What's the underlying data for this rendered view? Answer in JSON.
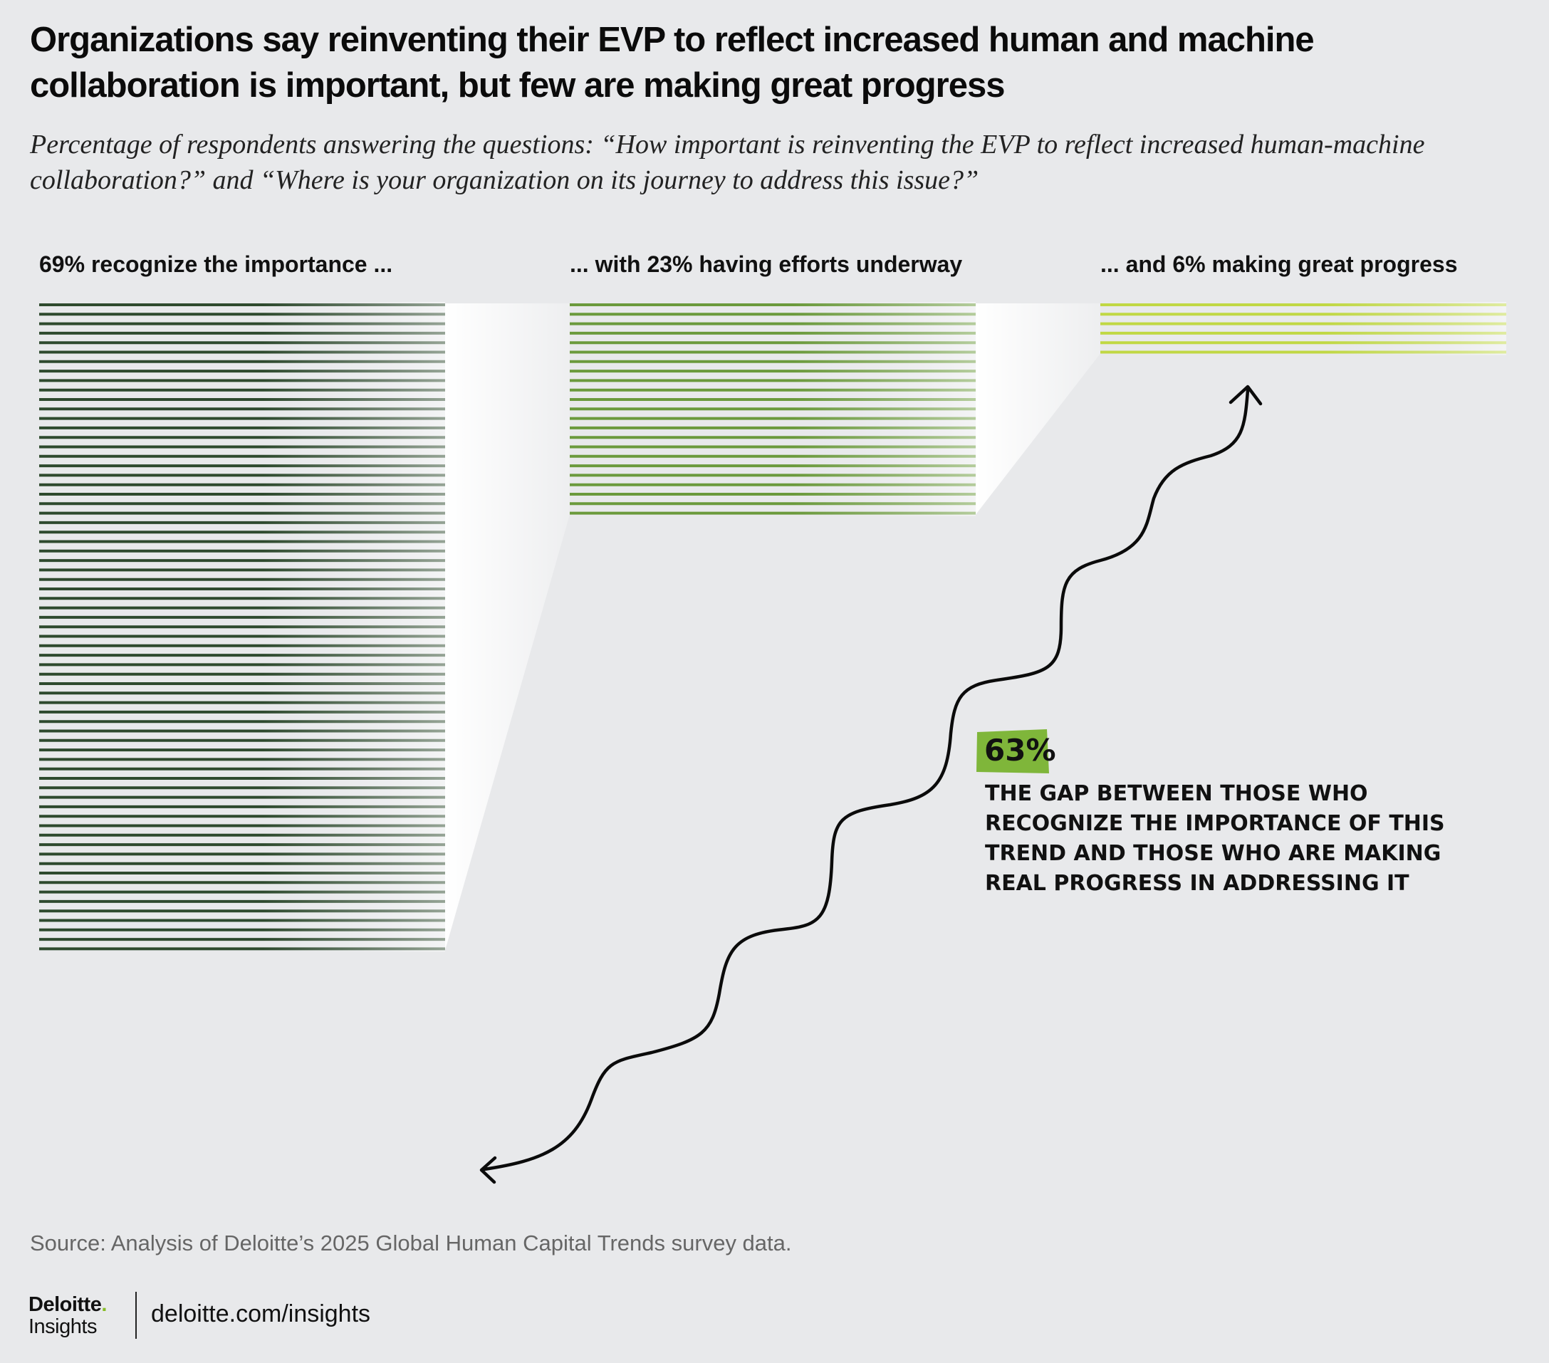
{
  "title": "Organizations say reinventing their EVP to reflect increased human and machine collaboration is important, but few are making great progress",
  "subtitle": "Percentage of respondents answering the questions: “How important is reinventing the EVP to reflect increased human-machine collaboration?” and “Where is your organization on its journey to address this issue?”",
  "chart_data": {
    "type": "bar",
    "categories": [
      "69% recognize the importance ...",
      "... with 23% having efforts underway",
      "... and 6% making great progress"
    ],
    "values": [
      69,
      23,
      6
    ],
    "unit": "%",
    "colors": [
      "#2e4a2e",
      "#6b9a3c",
      "#c0d844"
    ],
    "annotation": {
      "value": "63%",
      "lines": [
        "THE GAP BETWEEN THOSE WHO",
        "RECOGNIZE THE IMPORTANCE OF THIS",
        "TREND AND THOSE WHO ARE MAKING",
        "REAL PROGRESS IN ADDRESSING IT"
      ],
      "highlight_color": "#7fb63a"
    }
  },
  "source": "Source: Analysis of Deloitte’s 2025 Global Human Capital Trends survey data.",
  "footer": {
    "brand": "Deloitte",
    "brand_dot": ".",
    "brand_sub": "Insights",
    "url": "deloitte.com/insights"
  }
}
